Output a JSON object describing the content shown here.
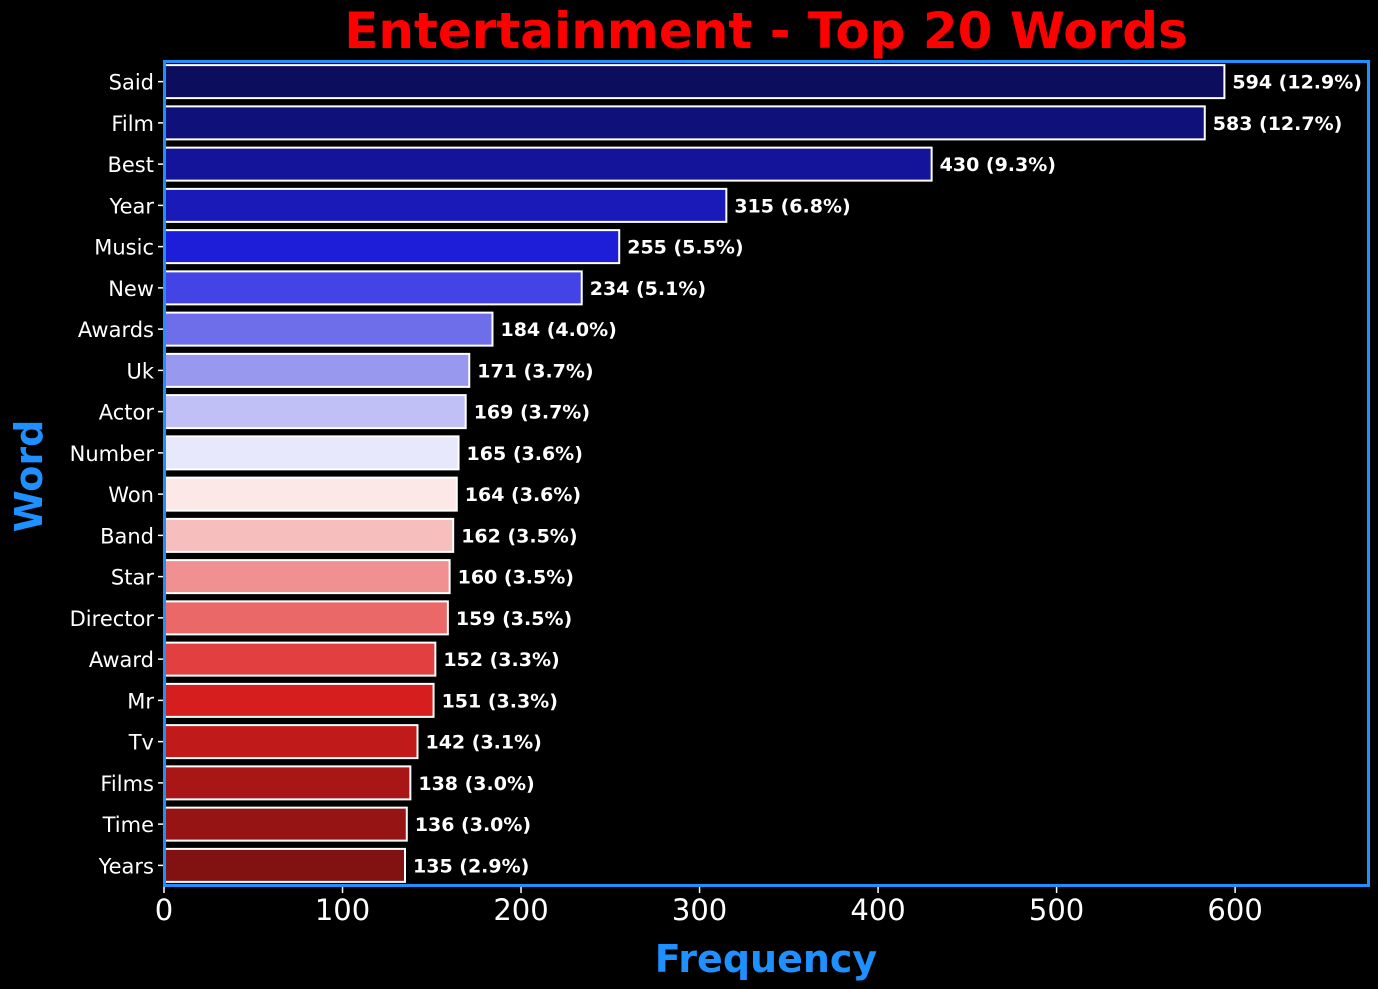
{
  "chart_data": {
    "type": "bar",
    "orientation": "horizontal",
    "title": "Entertainment - Top 20 Words",
    "xlabel": "Frequency",
    "ylabel": "Word",
    "xlim": [
      0,
      675
    ],
    "xticks": [
      0,
      100,
      200,
      300,
      400,
      500,
      600
    ],
    "grid": false,
    "categories": [
      "Said",
      "Film",
      "Best",
      "Year",
      "Music",
      "New",
      "Awards",
      "Uk",
      "Actor",
      "Number",
      "Won",
      "Band",
      "Star",
      "Director",
      "Award",
      "Mr",
      "Tv",
      "Films",
      "Time",
      "Years"
    ],
    "values": [
      594,
      583,
      430,
      315,
      255,
      234,
      184,
      171,
      169,
      165,
      164,
      162,
      160,
      159,
      152,
      151,
      142,
      138,
      136,
      135
    ],
    "data_labels": [
      "594 (12.9%)",
      "583 (12.7%)",
      "430 (9.3%)",
      "315 (6.8%)",
      "255 (5.5%)",
      "234 (5.1%)",
      "184 (4.0%)",
      "171 (3.7%)",
      "169 (3.7%)",
      "165 (3.6%)",
      "164 (3.6%)",
      "162 (3.5%)",
      "160 (3.5%)",
      "159 (3.5%)",
      "152 (3.3%)",
      "151 (3.3%)",
      "142 (3.1%)",
      "138 (3.0%)",
      "136 (3.0%)",
      "135 (2.9%)"
    ],
    "bar_colors": [
      "#0d0d5e",
      "#10107a",
      "#14149a",
      "#1a1ab8",
      "#1e1ed8",
      "#4444e6",
      "#6e6eea",
      "#9898ee",
      "#c0c0f6",
      "#e8e8fc",
      "#fde8e8",
      "#f7bebe",
      "#f09090",
      "#ea6868",
      "#e24040",
      "#d61e1e",
      "#c01a1a",
      "#a81616",
      "#961414",
      "#821212"
    ],
    "colors": {
      "background": "#000000",
      "title": "#ff0000",
      "axis_label": "#1e90ff",
      "frame": "#1e90ff",
      "text": "#ffffff",
      "bar_edge": "#ffffff"
    }
  }
}
